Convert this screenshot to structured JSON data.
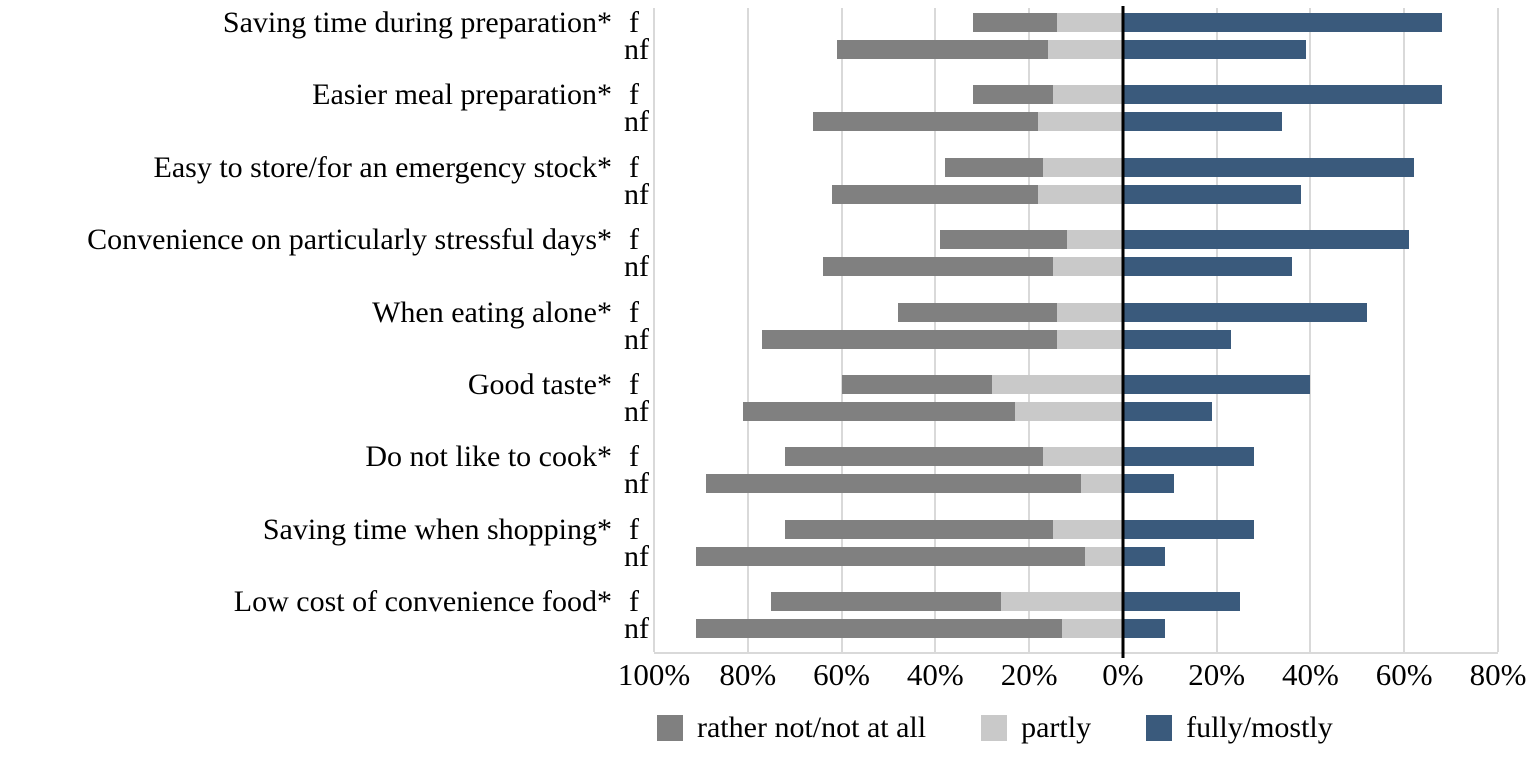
{
  "chart_data": {
    "type": "bar",
    "variant": "diverging-stacked-horizontal",
    "title": "",
    "unit": "%",
    "group_row_labels": [
      "f",
      "nf"
    ],
    "series": [
      "rather not/not at all",
      "partly",
      "fully/mostly"
    ],
    "rows": [
      {
        "category": "Saving time during preparation*",
        "f": [
          18,
          14,
          68
        ],
        "nf": [
          45,
          16,
          39
        ]
      },
      {
        "category": "Easier meal preparation*",
        "f": [
          17,
          15,
          68
        ],
        "nf": [
          48,
          18,
          34
        ]
      },
      {
        "category": "Easy to store/for an emergency stock*",
        "f": [
          21,
          17,
          62
        ],
        "nf": [
          44,
          18,
          38
        ]
      },
      {
        "category": "Convenience on particularly stressful days*",
        "f": [
          27,
          12,
          61
        ],
        "nf": [
          49,
          15,
          36
        ]
      },
      {
        "category": "When eating alone*",
        "f": [
          34,
          14,
          52
        ],
        "nf": [
          63,
          14,
          23
        ]
      },
      {
        "category": "Good taste*",
        "f": [
          32,
          28,
          40
        ],
        "nf": [
          58,
          23,
          19
        ]
      },
      {
        "category": "Do not like to cook*",
        "f": [
          55,
          17,
          28
        ],
        "nf": [
          80,
          9,
          11
        ]
      },
      {
        "category": "Saving time when shopping*",
        "f": [
          57,
          15,
          28
        ],
        "nf": [
          83,
          8,
          9
        ]
      },
      {
        "category": "Low cost of convenience food*",
        "f": [
          49,
          26,
          25
        ],
        "nf": [
          78,
          13,
          9
        ]
      }
    ],
    "x_axis": {
      "range": [
        -100,
        80
      ],
      "tick_step": 20,
      "tick_labels": [
        "100%",
        "80%",
        "60%",
        "40%",
        "20%",
        "0%",
        "20%",
        "40%",
        "60%",
        "80%"
      ],
      "grid": true,
      "zero_line": true
    },
    "legend": [
      {
        "label": "rather not/not at all",
        "color": "#808080"
      },
      {
        "label": "partly",
        "color": "#c9c9c9"
      },
      {
        "label": "fully/mostly",
        "color": "#3a5a7c"
      }
    ],
    "legend_position": "bottom",
    "colors": {
      "grid": "#d9d9d9",
      "zero_line": "#000000",
      "background": "#ffffff",
      "text": "#000000"
    }
  }
}
